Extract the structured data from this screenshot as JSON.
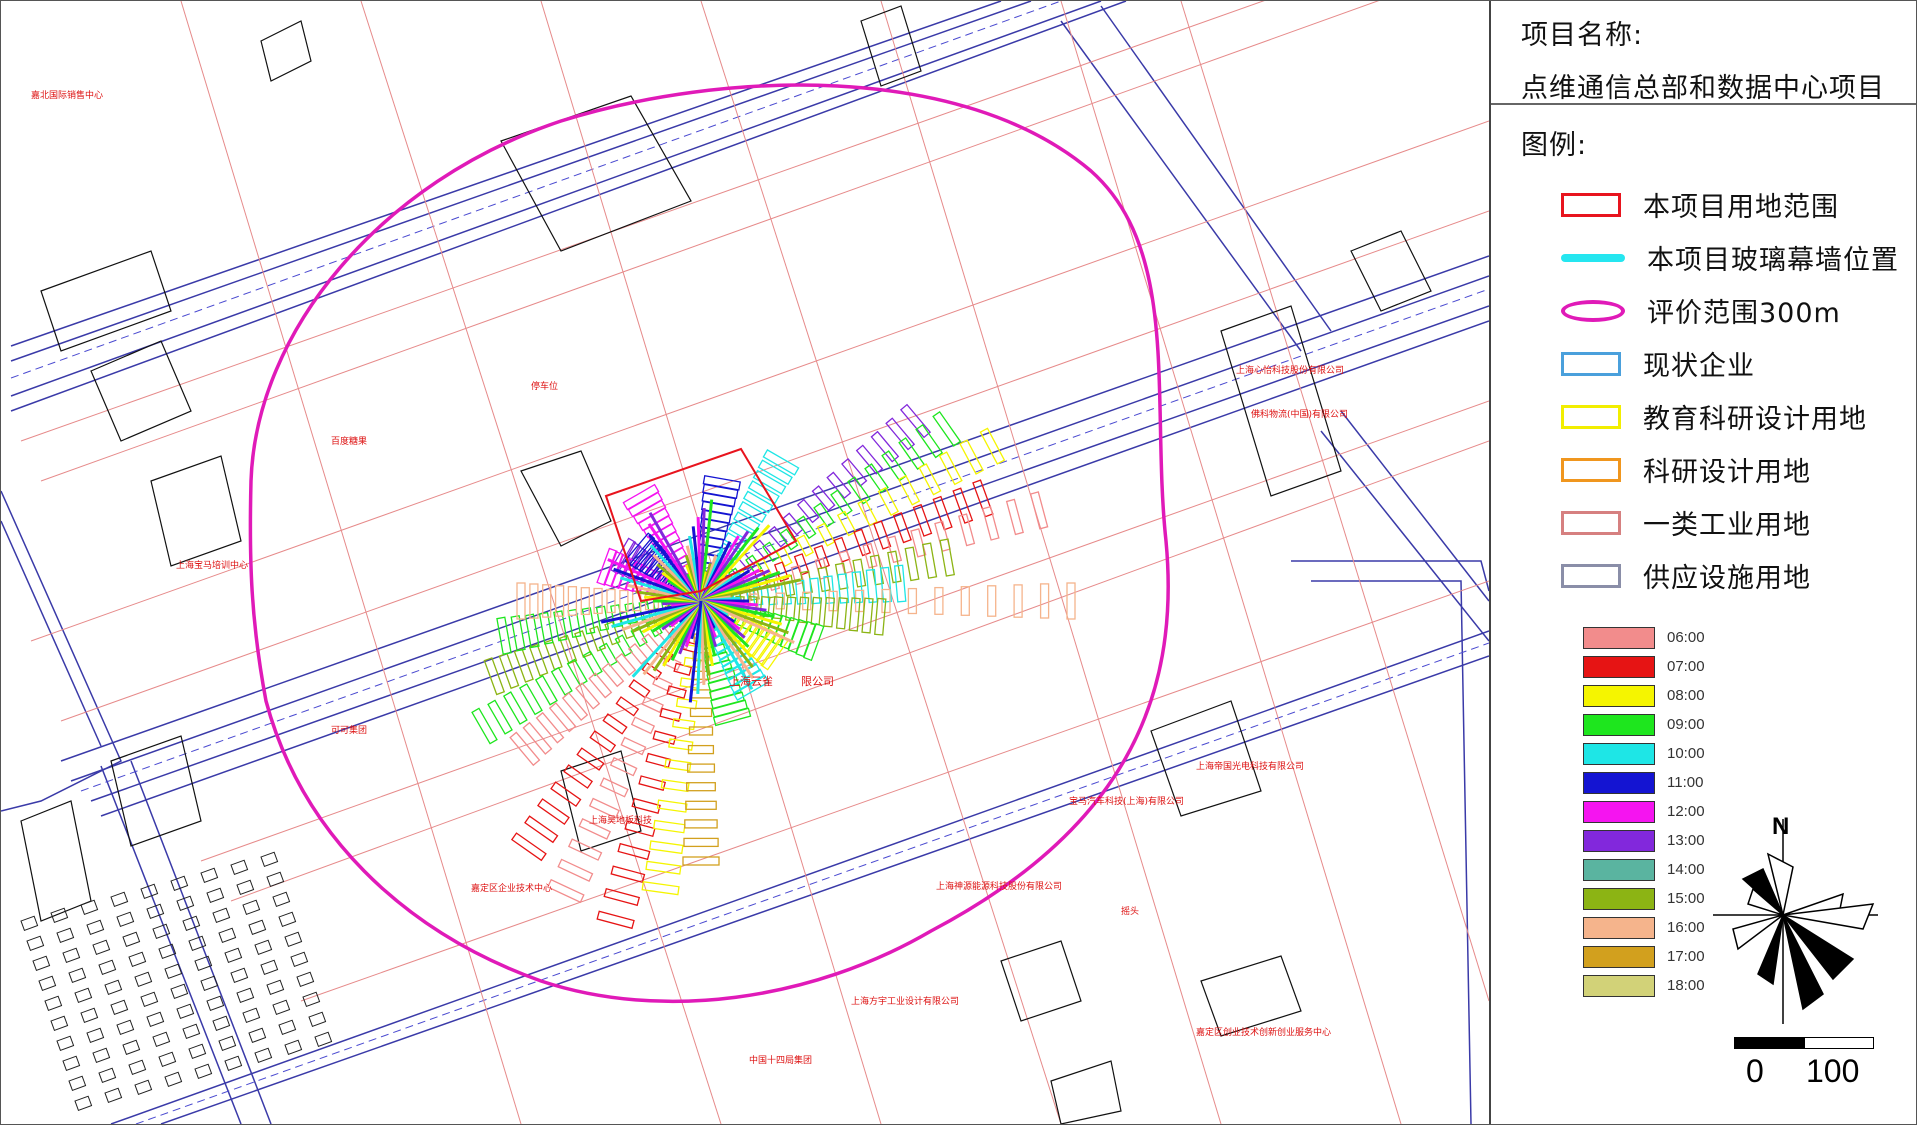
{
  "project": {
    "name_label": "项目名称:",
    "name_value": "点维通信总部和数据中心项目"
  },
  "legend": {
    "heading": "图例:",
    "items": [
      {
        "label": "本项目用地范围",
        "kind": "rect",
        "color": "#e8141e"
      },
      {
        "label": "本项目玻璃幕墙位置",
        "kind": "line",
        "color": "#25e6f0"
      },
      {
        "label": "评价范围300m",
        "kind": "ellipse",
        "color": "#e01ab8"
      },
      {
        "label": "现状企业",
        "kind": "rect",
        "color": "#4aa0dc"
      },
      {
        "label": "教育科研设计用地",
        "kind": "rect",
        "color": "#f2ee00"
      },
      {
        "label": "科研设计用地",
        "kind": "rect",
        "color": "#f0961e"
      },
      {
        "label": "一类工业用地",
        "kind": "rect",
        "color": "#d68080"
      },
      {
        "label": "供应设施用地",
        "kind": "rect",
        "color": "#8a8ea8"
      }
    ],
    "time_legend": [
      {
        "time": "06:00",
        "color": "#f28c8c"
      },
      {
        "time": "07:00",
        "color": "#e61414"
      },
      {
        "time": "08:00",
        "color": "#f5f500"
      },
      {
        "time": "09:00",
        "color": "#1ee61e"
      },
      {
        "time": "10:00",
        "color": "#1ee6e6"
      },
      {
        "time": "11:00",
        "color": "#1414d2"
      },
      {
        "time": "12:00",
        "color": "#f514f0"
      },
      {
        "time": "13:00",
        "color": "#8228dc"
      },
      {
        "time": "14:00",
        "color": "#5ab4a0"
      },
      {
        "time": "15:00",
        "color": "#8cb414"
      },
      {
        "time": "16:00",
        "color": "#f5b48c"
      },
      {
        "time": "17:00",
        "color": "#d2a01e"
      },
      {
        "time": "18:00",
        "color": "#d2d278"
      }
    ]
  },
  "compass": {
    "north": "N"
  },
  "scale": {
    "zero": "0",
    "distance": "100"
  },
  "map": {
    "evaluation_ring_color": "#e01ab8",
    "labels": [
      "上海云雀",
      "限公司",
      "上海宝马培训中心",
      "嘉定区企业技术中心",
      "上海方宇工业设计有限公司",
      "上海帝国光电科技有限公司",
      "上海心怡科技股份有限公司",
      "佛科物流(中国)有限公司",
      "嘉北国际销售中心",
      "停车位",
      "百度糖果",
      "上海昊地板科技",
      "上海神源能源科技股份有限公司",
      "宝马汽车科技(上海)有限公司",
      "嘉定区创业技术创新创业服务中心",
      "中国十四局集团",
      "摇头",
      "可可集团"
    ]
  }
}
